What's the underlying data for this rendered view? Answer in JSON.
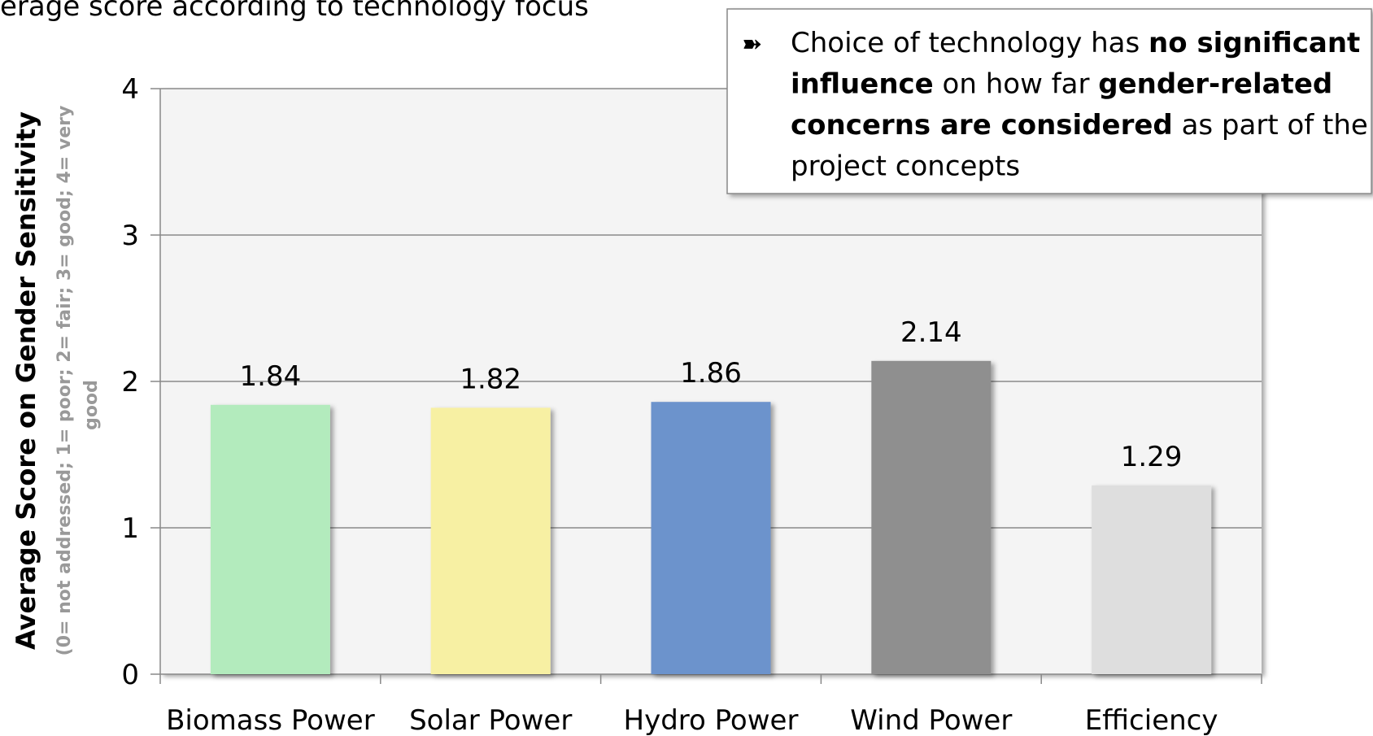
{
  "chart_data": {
    "type": "bar",
    "title": "erage score according to technology focus",
    "y_label": "Average Score on Gender Sensitivity",
    "y_sublabel_lines": [
      "(0= not addressed; 1= poor; 2= fair; 3= good; 4= very",
      "good"
    ],
    "categories": [
      "Biomass Power",
      "Solar Power",
      "Hydro Power",
      "Wind Power",
      "Efficiency"
    ],
    "values": [
      1.84,
      1.82,
      1.86,
      2.14,
      1.29
    ],
    "colors": [
      "#b3ebbd",
      "#f7f0a3",
      "#6c93cc",
      "#8f8f8f",
      "#dedede"
    ],
    "ylim": [
      0,
      4
    ],
    "yticks": [
      0,
      1,
      2,
      3,
      4
    ],
    "grid": true,
    "annotation": {
      "bullet": "➽",
      "lines": [
        [
          {
            "text": "Choice of technology has ",
            "bold": false
          },
          {
            "text": "no significant",
            "bold": true
          }
        ],
        [
          {
            "text": "influence",
            "bold": true
          },
          {
            "text": " on how far ",
            "bold": false
          },
          {
            "text": "gender-related",
            "bold": true
          }
        ],
        [
          {
            "text": "concerns are considered",
            "bold": true
          },
          {
            "text": " as part of the",
            "bold": false
          }
        ],
        [
          {
            "text": "project concepts",
            "bold": false
          }
        ]
      ]
    }
  }
}
